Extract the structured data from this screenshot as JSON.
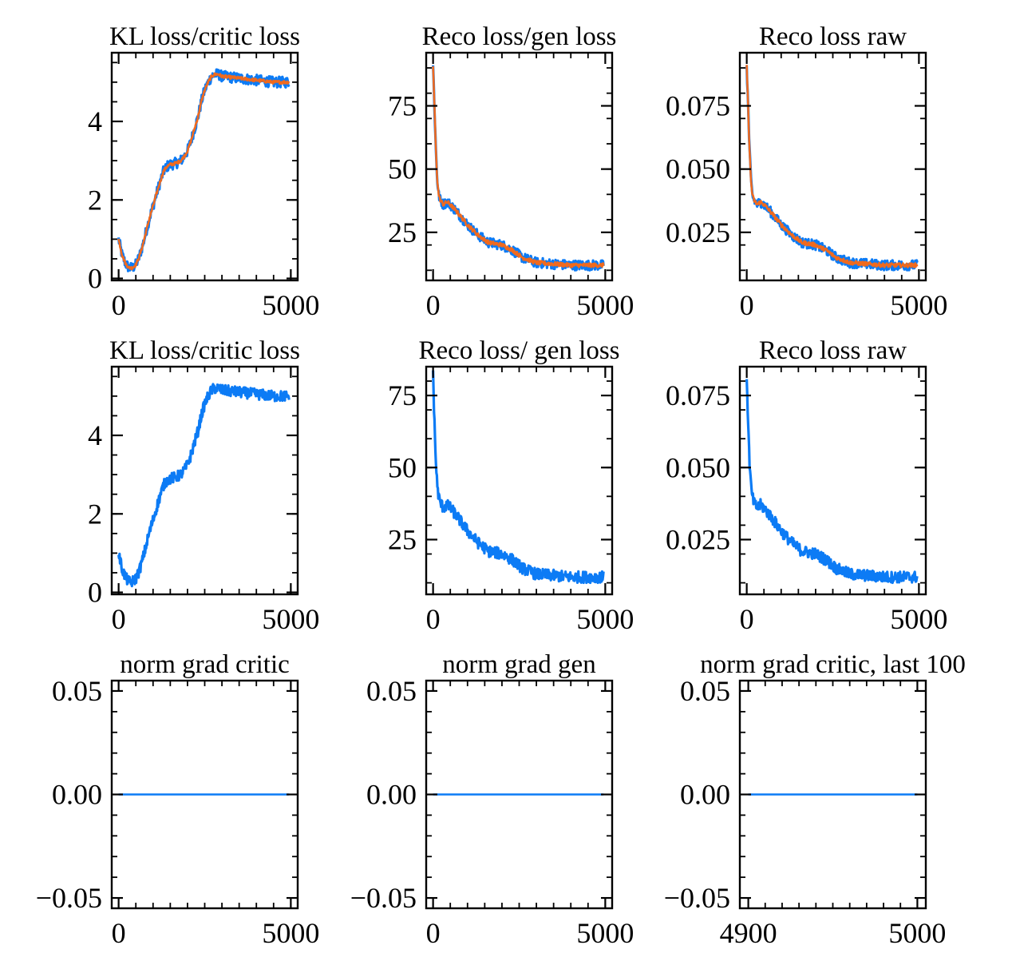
{
  "chart_data": [
    {
      "type": "line",
      "title": "KL loss/critic loss",
      "xlim": [
        -200,
        5200
      ],
      "ylim": [
        -0.05,
        5.75
      ],
      "xticks": [
        0,
        5000
      ],
      "xtick_labels": [
        "0",
        "5000"
      ],
      "yticks": [
        0,
        2,
        4
      ],
      "ytick_labels": [
        "0",
        "2",
        "4"
      ],
      "series": [
        {
          "color": "#0C7BF5",
          "noise": 0.14,
          "x": [
            0,
            100,
            200,
            300,
            400,
            500,
            600,
            700,
            800,
            900,
            1000,
            1100,
            1200,
            1300,
            1400,
            1500,
            1600,
            1700,
            1800,
            1900,
            2000,
            2100,
            2200,
            2300,
            2400,
            2500,
            2600,
            2700,
            2800,
            2900,
            3000,
            3500,
            4000,
            4500,
            4950
          ],
          "y": [
            1.0,
            0.6,
            0.38,
            0.27,
            0.27,
            0.35,
            0.55,
            0.85,
            1.2,
            1.55,
            1.85,
            2.15,
            2.45,
            2.72,
            2.85,
            2.9,
            2.92,
            2.95,
            3.0,
            3.1,
            3.25,
            3.5,
            3.8,
            4.1,
            4.5,
            4.8,
            5.0,
            5.15,
            5.2,
            5.2,
            5.15,
            5.1,
            5.05,
            5.0,
            5.0
          ]
        },
        {
          "color": "#F06A1E",
          "noise": 0.04,
          "x": [
            0,
            100,
            200,
            300,
            400,
            500,
            600,
            700,
            800,
            900,
            1000,
            1100,
            1200,
            1300,
            1400,
            1500,
            1600,
            1700,
            1800,
            1900,
            2000,
            2100,
            2200,
            2300,
            2400,
            2500,
            2600,
            2700,
            2800,
            2900,
            3000,
            3500,
            4000,
            4500,
            4950
          ],
          "y": [
            1.0,
            0.6,
            0.38,
            0.27,
            0.27,
            0.35,
            0.55,
            0.85,
            1.2,
            1.55,
            1.85,
            2.15,
            2.45,
            2.72,
            2.85,
            2.9,
            2.92,
            2.95,
            3.0,
            3.1,
            3.25,
            3.5,
            3.8,
            4.1,
            4.5,
            4.8,
            5.0,
            5.15,
            5.2,
            5.2,
            5.15,
            5.1,
            5.05,
            5.0,
            5.0
          ]
        }
      ]
    },
    {
      "type": "line",
      "title": "Reco loss/gen loss",
      "xlim": [
        -200,
        5200
      ],
      "ylim": [
        6,
        96
      ],
      "xticks": [
        0,
        5000
      ],
      "xtick_labels": [
        "0",
        "5000"
      ],
      "yticks": [
        25,
        50,
        75
      ],
      "ytick_labels": [
        "25",
        "50",
        "75"
      ],
      "series": [
        {
          "color": "#0C7BF5",
          "noise": 2.0,
          "x": [
            0,
            40,
            80,
            120,
            160,
            200,
            300,
            400,
            500,
            700,
            1000,
            1300,
            1600,
            2000,
            2300,
            2600,
            3000,
            3500,
            4000,
            4500,
            4950
          ],
          "y": [
            91,
            75,
            58,
            46,
            40,
            38,
            36,
            37,
            36,
            33,
            28,
            24,
            21,
            20,
            18,
            15,
            13,
            12.5,
            12,
            12,
            12
          ]
        },
        {
          "color": "#F06A1E",
          "noise": 0.8,
          "x": [
            0,
            40,
            80,
            120,
            160,
            200,
            300,
            400,
            500,
            700,
            1000,
            1300,
            1600,
            2000,
            2300,
            2600,
            3000,
            3500,
            4000,
            4500,
            4950
          ],
          "y": [
            91,
            75,
            58,
            46,
            40,
            38,
            36,
            37,
            36,
            33,
            28,
            24,
            21,
            20,
            18,
            15,
            13,
            12.5,
            12,
            12,
            12
          ]
        }
      ]
    },
    {
      "type": "line",
      "title": "Reco loss raw",
      "xlim": [
        -200,
        5200
      ],
      "ylim": [
        0.006,
        0.096
      ],
      "xticks": [
        0,
        5000
      ],
      "xtick_labels": [
        "0",
        "5000"
      ],
      "yticks": [
        0.025,
        0.05,
        0.075
      ],
      "ytick_labels": [
        "0.025",
        "0.050",
        "0.075"
      ],
      "series": [
        {
          "color": "#0C7BF5",
          "noise": 0.002,
          "x": [
            0,
            40,
            80,
            120,
            160,
            200,
            300,
            400,
            500,
            700,
            1000,
            1300,
            1600,
            2000,
            2300,
            2600,
            3000,
            3500,
            4000,
            4500,
            4950
          ],
          "y": [
            0.091,
            0.075,
            0.058,
            0.046,
            0.04,
            0.038,
            0.036,
            0.037,
            0.036,
            0.033,
            0.028,
            0.024,
            0.021,
            0.02,
            0.018,
            0.015,
            0.013,
            0.0125,
            0.012,
            0.012,
            0.012
          ]
        },
        {
          "color": "#F06A1E",
          "noise": 0.0008,
          "x": [
            0,
            40,
            80,
            120,
            160,
            200,
            300,
            400,
            500,
            700,
            1000,
            1300,
            1600,
            2000,
            2300,
            2600,
            3000,
            3500,
            4000,
            4500,
            4950
          ],
          "y": [
            0.091,
            0.075,
            0.058,
            0.046,
            0.04,
            0.038,
            0.036,
            0.037,
            0.036,
            0.033,
            0.028,
            0.024,
            0.021,
            0.02,
            0.018,
            0.015,
            0.013,
            0.0125,
            0.012,
            0.012,
            0.012
          ]
        }
      ]
    },
    {
      "type": "line",
      "title": "KL loss/critic loss",
      "xlim": [
        -200,
        5200
      ],
      "ylim": [
        -0.05,
        5.75
      ],
      "xticks": [
        0,
        5000
      ],
      "xtick_labels": [
        "0",
        "5000"
      ],
      "yticks": [
        0,
        2,
        4
      ],
      "ytick_labels": [
        "0",
        "2",
        "4"
      ],
      "series": [
        {
          "color": "#0C7BF5",
          "noise": 0.14,
          "x": [
            0,
            100,
            200,
            300,
            400,
            500,
            600,
            700,
            800,
            900,
            1000,
            1100,
            1200,
            1300,
            1400,
            1500,
            1600,
            1700,
            1800,
            1900,
            2000,
            2100,
            2200,
            2300,
            2400,
            2500,
            2600,
            2700,
            2800,
            2900,
            3000,
            3500,
            4000,
            4500,
            4950
          ],
          "y": [
            1.0,
            0.6,
            0.38,
            0.27,
            0.27,
            0.35,
            0.55,
            0.85,
            1.2,
            1.55,
            1.85,
            2.15,
            2.45,
            2.72,
            2.85,
            2.9,
            2.92,
            2.95,
            3.0,
            3.1,
            3.25,
            3.5,
            3.8,
            4.1,
            4.5,
            4.8,
            5.0,
            5.15,
            5.2,
            5.2,
            5.15,
            5.1,
            5.05,
            5.0,
            5.0
          ]
        }
      ]
    },
    {
      "type": "line",
      "title": "Reco loss/ gen loss",
      "xlim": [
        -200,
        5200
      ],
      "ylim": [
        6,
        85
      ],
      "xticks": [
        0,
        5000
      ],
      "xtick_labels": [
        "0",
        "5000"
      ],
      "yticks": [
        25,
        50,
        75
      ],
      "ytick_labels": [
        "25",
        "50",
        "75"
      ],
      "series": [
        {
          "color": "#0C7BF5",
          "noise": 2.0,
          "x": [
            0,
            40,
            80,
            120,
            160,
            200,
            300,
            400,
            500,
            700,
            1000,
            1300,
            1600,
            2000,
            2300,
            2600,
            3000,
            3500,
            4000,
            4500,
            4950
          ],
          "y": [
            82,
            66,
            52,
            44,
            40,
            38,
            36,
            37,
            36,
            33,
            28,
            24,
            21,
            20,
            18,
            15,
            13,
            12.5,
            12,
            12,
            12
          ]
        }
      ]
    },
    {
      "type": "line",
      "title": "Reco loss raw",
      "xlim": [
        -200,
        5200
      ],
      "ylim": [
        0.006,
        0.085
      ],
      "xticks": [
        0,
        5000
      ],
      "xtick_labels": [
        "0",
        "5000"
      ],
      "yticks": [
        0.025,
        0.05,
        0.075
      ],
      "ytick_labels": [
        "0.025",
        "0.050",
        "0.075"
      ],
      "series": [
        {
          "color": "#0C7BF5",
          "noise": 0.002,
          "x": [
            0,
            40,
            80,
            120,
            160,
            200,
            300,
            400,
            500,
            700,
            1000,
            1300,
            1600,
            2000,
            2300,
            2600,
            3000,
            3500,
            4000,
            4500,
            4950
          ],
          "y": [
            0.082,
            0.066,
            0.052,
            0.044,
            0.04,
            0.038,
            0.036,
            0.037,
            0.036,
            0.033,
            0.028,
            0.024,
            0.021,
            0.02,
            0.018,
            0.015,
            0.013,
            0.0125,
            0.012,
            0.012,
            0.012
          ]
        }
      ]
    },
    {
      "type": "line",
      "title": "norm grad critic",
      "xlim": [
        -200,
        5200
      ],
      "ylim": [
        -0.055,
        0.055
      ],
      "xticks": [
        0,
        5000
      ],
      "xtick_labels": [
        "0",
        "5000"
      ],
      "yticks": [
        -0.05,
        0.0,
        0.05
      ],
      "ytick_labels": [
        "−0.05",
        "0.00",
        "0.05"
      ],
      "series": [
        {
          "color": "#0C7BF5",
          "noise": 0,
          "x": [
            0,
            4950
          ],
          "y": [
            0,
            0
          ]
        }
      ]
    },
    {
      "type": "line",
      "title": "norm grad gen",
      "xlim": [
        -200,
        5200
      ],
      "ylim": [
        -0.055,
        0.055
      ],
      "xticks": [
        0,
        5000
      ],
      "xtick_labels": [
        "0",
        "5000"
      ],
      "yticks": [
        -0.05,
        0.0,
        0.05
      ],
      "ytick_labels": [
        "−0.05",
        "0.00",
        "0.05"
      ],
      "series": [
        {
          "color": "#0C7BF5",
          "noise": 0,
          "x": [
            0,
            4950
          ],
          "y": [
            0,
            0
          ]
        }
      ]
    },
    {
      "type": "line",
      "title": "norm grad critic, last 100",
      "xlim": [
        4895,
        5005
      ],
      "ylim": [
        -0.055,
        0.055
      ],
      "xticks": [
        4900,
        5000
      ],
      "xtick_labels": [
        "4900",
        "5000"
      ],
      "yticks": [
        -0.05,
        0.0,
        0.05
      ],
      "ytick_labels": [
        "−0.05",
        "0.00",
        "0.05"
      ],
      "series": [
        {
          "color": "#0C7BF5",
          "noise": 0,
          "x": [
            4900,
            5000
          ],
          "y": [
            0,
            0
          ]
        }
      ]
    }
  ]
}
